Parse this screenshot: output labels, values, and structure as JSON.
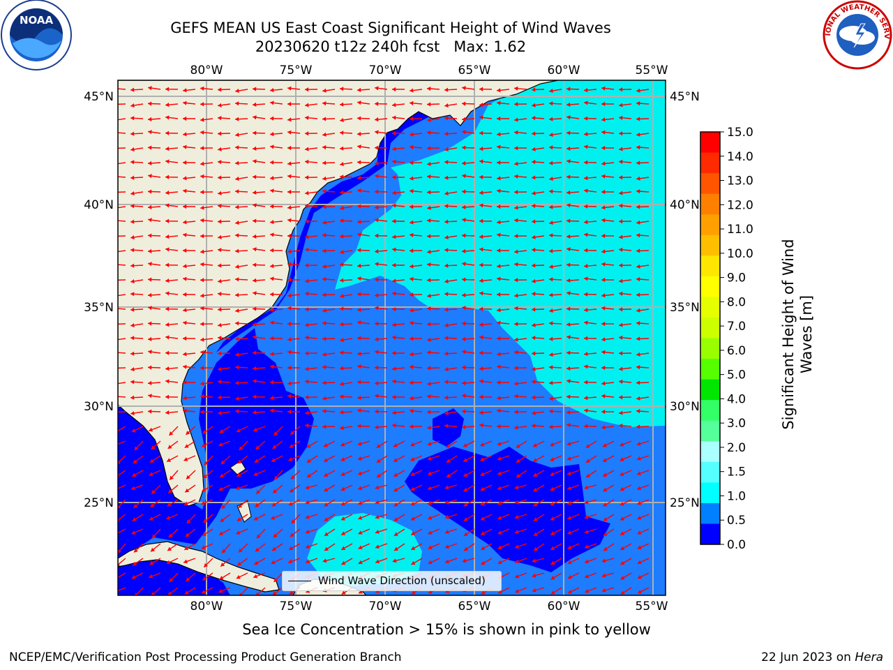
{
  "title": {
    "line1": "GEFS MEAN US East Coast Significant Height of Wind Waves",
    "line2": "20230620 t12z 240h fcst   Max: 1.62"
  },
  "axes": {
    "lon_labels": [
      "80°W",
      "75°W",
      "70°W",
      "65°W",
      "60°W",
      "55°W"
    ],
    "lat_labels": [
      "45°N",
      "40°N",
      "35°N",
      "30°N",
      "25°N"
    ]
  },
  "legend": {
    "label": "Wind Wave Direction (unscaled)"
  },
  "colorbar": {
    "label": "Significant Height of Wind Waves [m]",
    "ticks": [
      "15.0",
      "14.0",
      "13.0",
      "12.0",
      "11.0",
      "10.0",
      "9.0",
      "8.0",
      "7.0",
      "6.0",
      "5.0",
      "4.0",
      "3.0",
      "2.0",
      "1.5",
      "1.0",
      "0.5",
      "0.0"
    ],
    "colors_top_to_bottom": [
      "#ff0000",
      "#ff2a00",
      "#ff5500",
      "#ff7f00",
      "#ff9f00",
      "#ffbf00",
      "#ffe600",
      "#ffff00",
      "#e6ff00",
      "#ccff00",
      "#99ff00",
      "#55ff00",
      "#00e600",
      "#33ff66",
      "#55ff99",
      "#aaffff",
      "#55ffff",
      "#00ffff",
      "#0080ff",
      "#0000ff"
    ]
  },
  "colors": {
    "land": "#efeedd",
    "sea_dark": "#0000ff",
    "sea_mid": "#1e7cff",
    "sea_light": "#00f0f0",
    "arrow": "#ff0000",
    "grid": "#b0b0b0"
  },
  "footer": {
    "ice_note": "Sea Ice Concentration > 15% is shown in pink to yellow",
    "credit": "NCEP/EMC/Verification Post Processing Product Generation Branch",
    "date": "22 Jun 2023 on",
    "host": "Hera"
  },
  "logos": {
    "left": "NOAA",
    "right_text": "NATIONAL WEATHER SERVICE"
  }
}
